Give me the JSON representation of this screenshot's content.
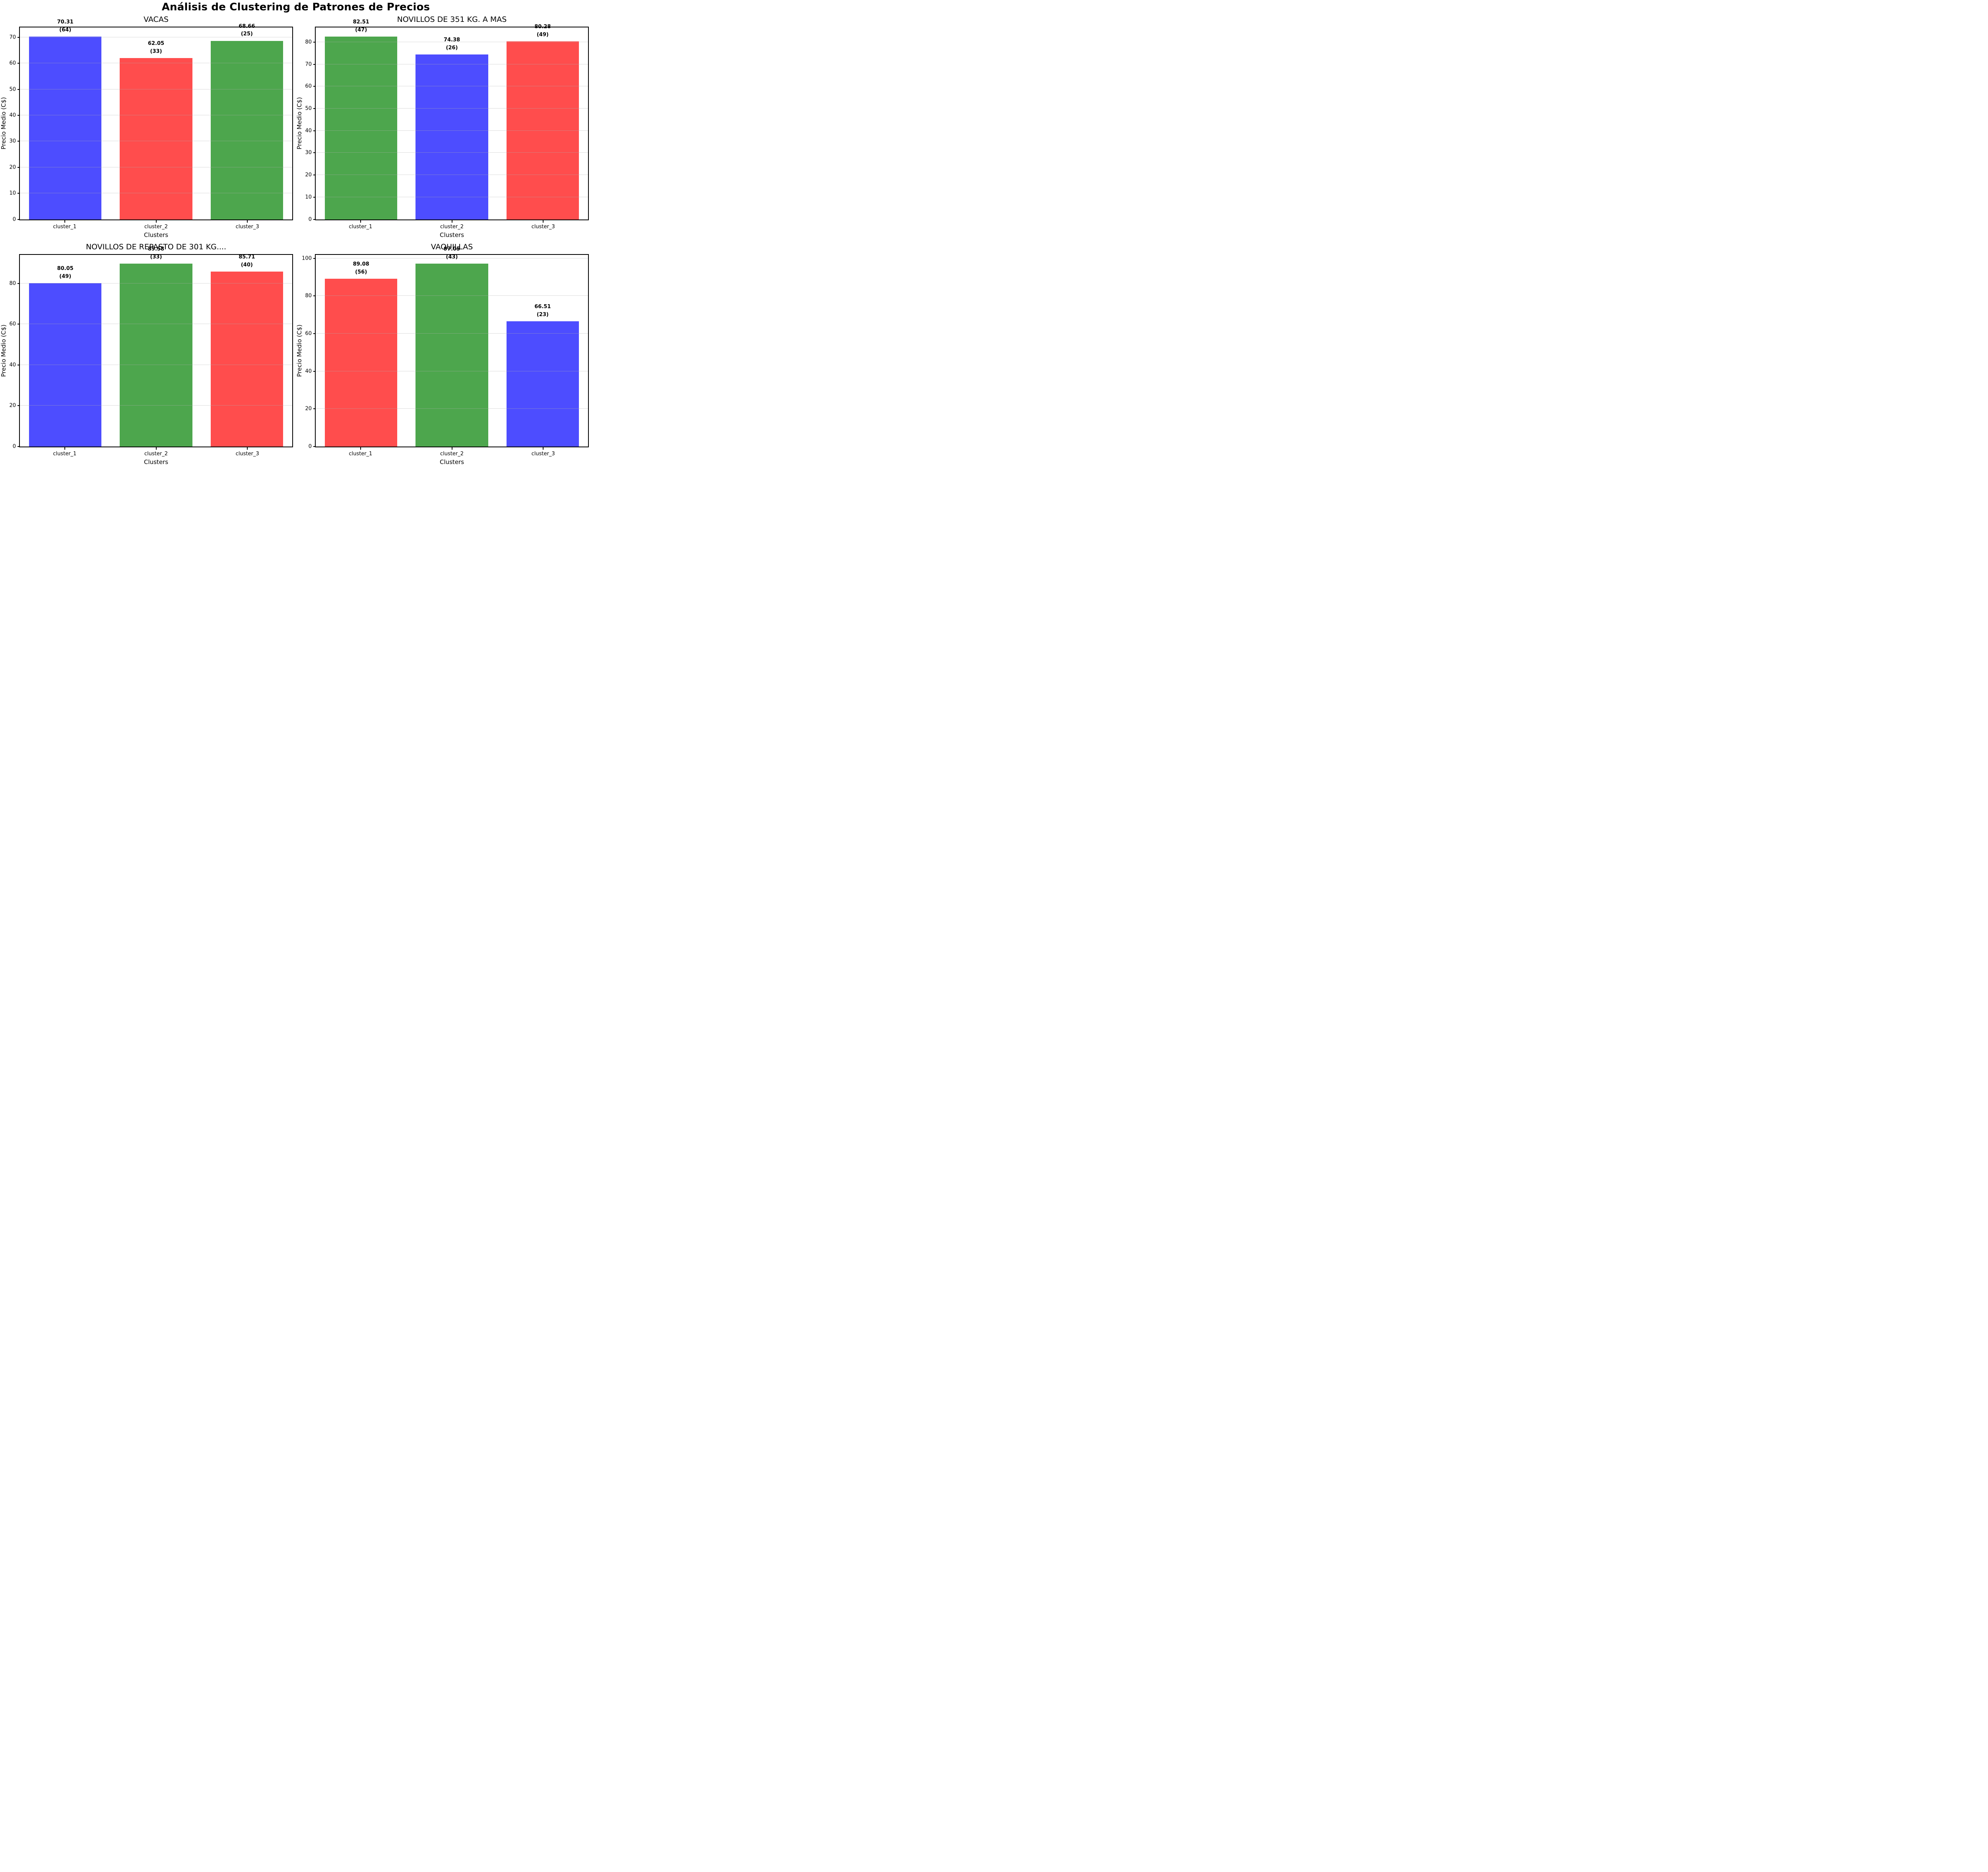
{
  "suptitle": "Análisis de Clustering de Patrones de Precios",
  "colors": {
    "blue": "#4D4DFF",
    "red": "#FF4D4D",
    "green": "#4DA64D",
    "grid": "#B0B0B0",
    "spine": "#000000"
  },
  "chart_data": [
    {
      "type": "bar",
      "title": "VACAS",
      "xlabel": "Clusters",
      "ylabel": "Precio Medio (C$)",
      "categories": [
        "cluster_1",
        "cluster_2",
        "cluster_3"
      ],
      "values": [
        70.31,
        62.05,
        68.66
      ],
      "counts": [
        64,
        33,
        25
      ],
      "value_labels": [
        "70.31",
        "62.05",
        "68.66"
      ],
      "count_labels": [
        "(64)",
        "(33)",
        "(25)"
      ],
      "bar_colors": [
        "#4D4DFF",
        "#FF4D4D",
        "#4DA64D"
      ],
      "yticks": [
        0,
        10,
        20,
        30,
        40,
        50,
        60,
        70
      ],
      "ylim": [
        0,
        73.83
      ],
      "grid": true,
      "legend_position": "none"
    },
    {
      "type": "bar",
      "title": "NOVILLOS DE 351 KG. A MAS",
      "xlabel": "Clusters",
      "ylabel": "Precio Medio (C$)",
      "categories": [
        "cluster_1",
        "cluster_2",
        "cluster_3"
      ],
      "values": [
        82.51,
        74.38,
        80.28
      ],
      "counts": [
        47,
        26,
        49
      ],
      "value_labels": [
        "82.51",
        "74.38",
        "80.28"
      ],
      "count_labels": [
        "(47)",
        "(26)",
        "(49)"
      ],
      "bar_colors": [
        "#4DA64D",
        "#4D4DFF",
        "#FF4D4D"
      ],
      "yticks": [
        0,
        10,
        20,
        30,
        40,
        50,
        60,
        70,
        80
      ],
      "ylim": [
        0,
        86.64
      ],
      "grid": true,
      "legend_position": "none"
    },
    {
      "type": "bar",
      "title": "NOVILLOS DE REPASTO DE 301 KG....",
      "xlabel": "Clusters",
      "ylabel": "Precio Medio (C$)",
      "categories": [
        "cluster_1",
        "cluster_2",
        "cluster_3"
      ],
      "values": [
        80.05,
        89.58,
        85.71
      ],
      "counts": [
        49,
        33,
        40
      ],
      "value_labels": [
        "80.05",
        "89.58",
        "85.71"
      ],
      "count_labels": [
        "(49)",
        "(33)",
        "(40)"
      ],
      "bar_colors": [
        "#4D4DFF",
        "#4DA64D",
        "#FF4D4D"
      ],
      "yticks": [
        0,
        20,
        40,
        60,
        80
      ],
      "ylim": [
        0,
        94.06
      ],
      "grid": true,
      "legend_position": "none"
    },
    {
      "type": "bar",
      "title": "VAQUILLAS",
      "xlabel": "Clusters",
      "ylabel": "Precio Medio (C$)",
      "categories": [
        "cluster_1",
        "cluster_2",
        "cluster_3"
      ],
      "values": [
        89.08,
        97.05,
        66.51
      ],
      "counts": [
        56,
        43,
        23
      ],
      "value_labels": [
        "89.08",
        "97.05",
        "66.51"
      ],
      "count_labels": [
        "(56)",
        "(43)",
        "(23)"
      ],
      "bar_colors": [
        "#FF4D4D",
        "#4DA64D",
        "#4D4DFF"
      ],
      "yticks": [
        0,
        20,
        40,
        60,
        80,
        100
      ],
      "ylim": [
        0,
        101.9
      ],
      "grid": true,
      "legend_position": "none"
    }
  ]
}
